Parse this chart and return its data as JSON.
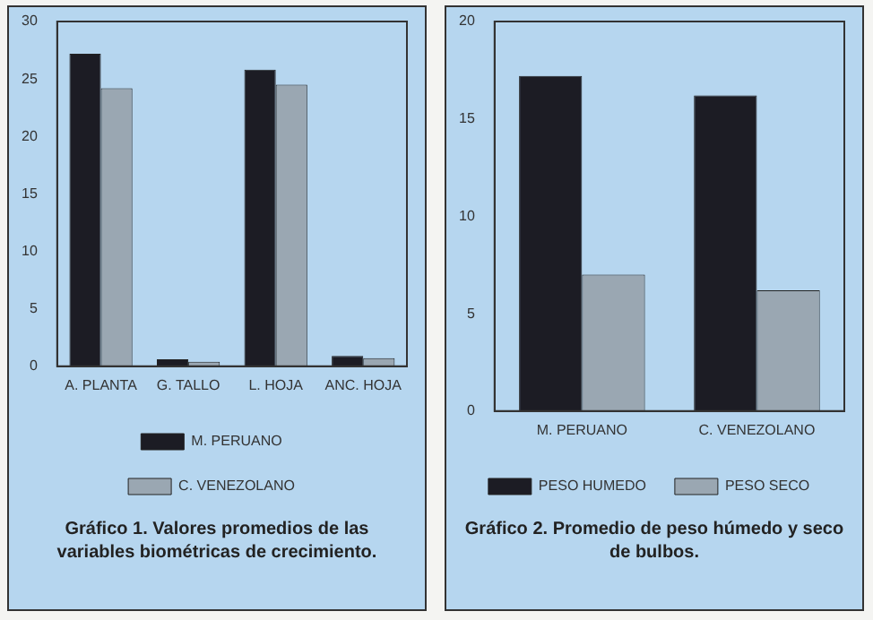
{
  "chart_data": [
    {
      "type": "bar",
      "categories": [
        "A. PLANTA",
        "G. TALLO",
        "L. HOJA",
        "ANC. HOJA"
      ],
      "series": [
        {
          "name": "M. PERUANO",
          "color": "#1c1c24",
          "values": [
            27.2,
            0.6,
            25.8,
            0.9
          ]
        },
        {
          "name": "C. VENEZOLANO",
          "color": "#9aa7b2",
          "values": [
            24.2,
            0.4,
            24.5,
            0.7
          ]
        }
      ],
      "ylim": [
        0,
        30
      ],
      "yticks": [
        0,
        5,
        10,
        15,
        20,
        25,
        30
      ],
      "grid": false,
      "legend": "bottom",
      "annotations": [
        "Gráfico 1. Valores promedios de las variables biométricas de crecimiento."
      ]
    },
    {
      "type": "bar",
      "categories": [
        "M. PERUANO",
        "C. VENEZOLANO"
      ],
      "series": [
        {
          "name": "PESO HUMEDO",
          "color": "#1c1c24",
          "values": [
            17.2,
            16.2
          ]
        },
        {
          "name": "PESO SECO",
          "color": "#9aa7b2",
          "values": [
            7.0,
            6.2
          ]
        }
      ],
      "ylim": [
        0,
        20
      ],
      "yticks": [
        0,
        5,
        10,
        15,
        20
      ],
      "grid": false,
      "legend": "bottom",
      "annotations": [
        "Gráfico 2. Promedio de peso húmedo y seco de bulbos."
      ]
    }
  ]
}
